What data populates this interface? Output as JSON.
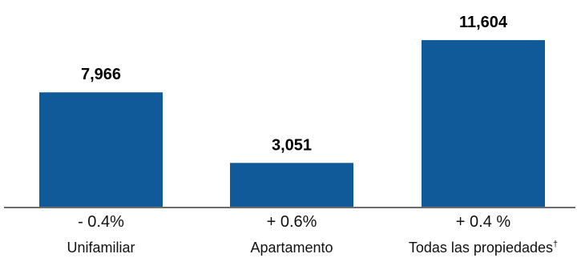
{
  "chart_data": {
    "type": "bar",
    "categories": [
      "Unifamiliar",
      "Apartamento",
      "Todas las propiedades"
    ],
    "category_notes": [
      "",
      "",
      "†"
    ],
    "values": [
      7966,
      3051,
      11604
    ],
    "value_labels": [
      "7,966",
      "3,051",
      "11,604"
    ],
    "change_labels": [
      "- 0.4%",
      "+ 0.6%",
      "+ 0.4 %"
    ],
    "title": "",
    "xlabel": "",
    "ylabel": "",
    "ylim": [
      0,
      12500
    ],
    "grid": false,
    "bar_color": "#115a9a",
    "axis_color": "#6d6d6d"
  }
}
